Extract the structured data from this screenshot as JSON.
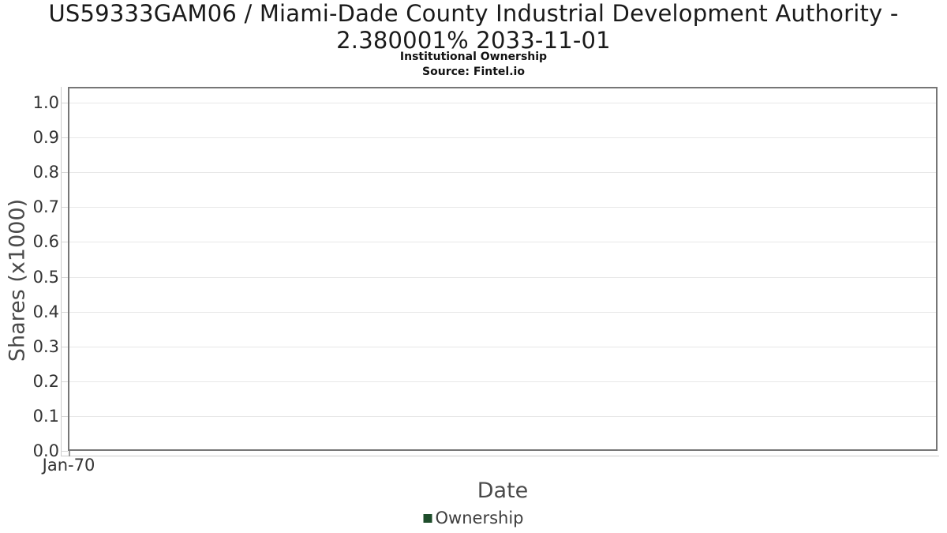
{
  "header": {
    "title": "US59333GAM06 / Miami-Dade County Industrial Development Authority - 2.380001% 2033-11-01",
    "subtitle": "Institutional Ownership",
    "source": "Source: Fintel.io"
  },
  "chart_data": {
    "type": "line",
    "title": "US59333GAM06 / Miami-Dade County Industrial Development Authority - 2.380001% 2033-11-01",
    "subtitle": "Institutional Ownership",
    "source": "Source: Fintel.io",
    "xlabel": "Date",
    "ylabel": "Shares (x1000)",
    "x_ticks": [
      "Jan-70"
    ],
    "y_ticks": [
      "0.0",
      "0.1",
      "0.2",
      "0.3",
      "0.4",
      "0.5",
      "0.6",
      "0.7",
      "0.8",
      "0.9",
      "1.0"
    ],
    "ylim": [
      0,
      1.045
    ],
    "grid": true,
    "legend": {
      "position": "bottom",
      "entries": [
        {
          "label": "Ownership",
          "color": "#1e4d2b"
        }
      ]
    },
    "series": [
      {
        "name": "Ownership",
        "color": "#1e4d2b",
        "x": [],
        "y": []
      }
    ]
  }
}
